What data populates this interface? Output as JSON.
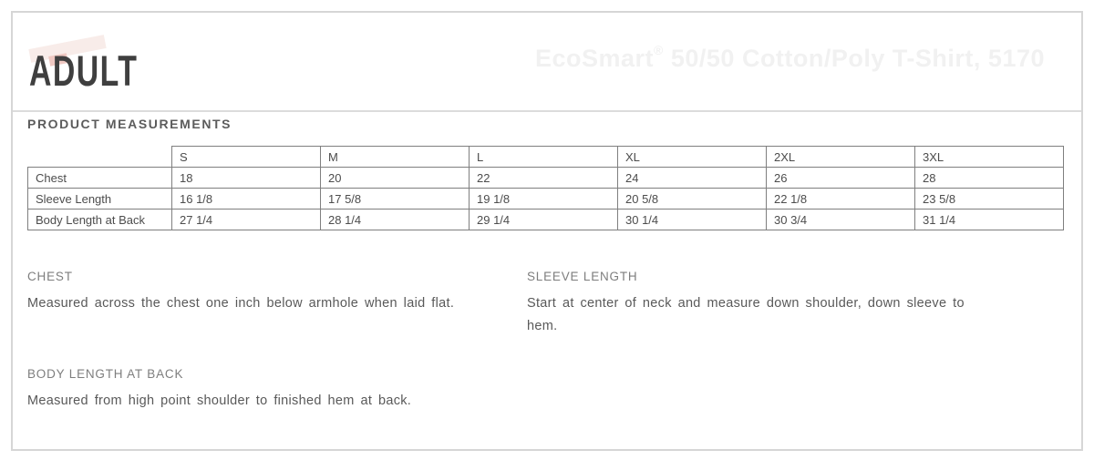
{
  "header": {
    "section_title": "ADULT",
    "logo_icon": "faded-pink-swoosh",
    "watermark": {
      "brand": "EcoSmart",
      "reg_mark": "®",
      "rest": " 50/50 Cotton/Poly T-Shirt, 5170"
    }
  },
  "measurements": {
    "title": "PRODUCT MEASUREMENTS",
    "table": {
      "corner_label": "",
      "columns": [
        "S",
        "M",
        "L",
        "XL",
        "2XL",
        "3XL"
      ],
      "rows": [
        {
          "label": "Chest",
          "values": [
            "18",
            "20",
            "22",
            "24",
            "26",
            "28"
          ]
        },
        {
          "label": "Sleeve Length",
          "values": [
            "16 1/8",
            "17 5/8",
            "19 1/8",
            "20 5/8",
            "22 1/8",
            "23 5/8"
          ]
        },
        {
          "label": "Body Length at Back",
          "values": [
            "27 1/4",
            "28 1/4",
            "29 1/4",
            "30 1/4",
            "30 3/4",
            "31 1/4"
          ]
        }
      ]
    }
  },
  "definitions": [
    {
      "term": "CHEST",
      "description": "Measured across the chest one inch below armhole when laid flat."
    },
    {
      "term": "SLEEVE LENGTH",
      "description": "Start at center of neck and measure down shoulder, down sleeve to hem."
    },
    {
      "term": "BODY LENGTH AT BACK",
      "description": "Measured from high point shoulder to finished hem at back."
    }
  ],
  "colors": {
    "panel_border": "#d6d6d6",
    "divider": "#dcdcdc",
    "table_border": "#7f7f7f",
    "heading_text": "#3f3f3f",
    "section_title_text": "#5c5c5c",
    "body_text": "#595959",
    "term_text": "#7e7e7e",
    "watermark_text": "#f1f1f1",
    "swoosh_pink": "#f8ece9",
    "swoosh_red": "#efc8c2"
  }
}
